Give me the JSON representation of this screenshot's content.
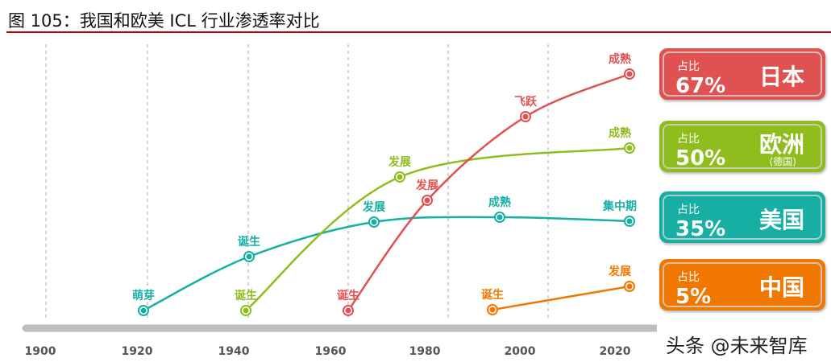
{
  "title": "图 105：我国和欧美 ICL 行业渗透率对比",
  "axis": {
    "years": [
      "1900",
      "1920",
      "1940",
      "1960",
      "1980",
      "2000",
      "2020"
    ]
  },
  "colors": {
    "japan": "#e05252",
    "europe": "#8fbd1e",
    "usa": "#17aea3",
    "china": "#f07800",
    "axis": "#bdbdbd"
  },
  "series": [
    {
      "key": "usa",
      "stages": [
        "萌芽",
        "诞生",
        "发展",
        "成熟",
        "集中期"
      ]
    },
    {
      "key": "europe",
      "stages": [
        "诞生",
        "发展",
        "成熟"
      ]
    },
    {
      "key": "japan",
      "stages": [
        "诞生",
        "发展",
        "飞跃",
        "成熟"
      ]
    },
    {
      "key": "china",
      "stages": [
        "诞生",
        "发展"
      ]
    }
  ],
  "boxes": [
    {
      "key": "japan",
      "label": "占比",
      "pct": "67%",
      "name": "日本",
      "sub": ""
    },
    {
      "key": "europe",
      "label": "占比",
      "pct": "50%",
      "name": "欧洲",
      "sub": "(德国)"
    },
    {
      "key": "usa",
      "label": "占比",
      "pct": "35%",
      "name": "美国",
      "sub": ""
    },
    {
      "key": "china",
      "label": "占比",
      "pct": "5%",
      "name": "中国",
      "sub": ""
    }
  ],
  "watermark": "头条 @未来智库"
}
